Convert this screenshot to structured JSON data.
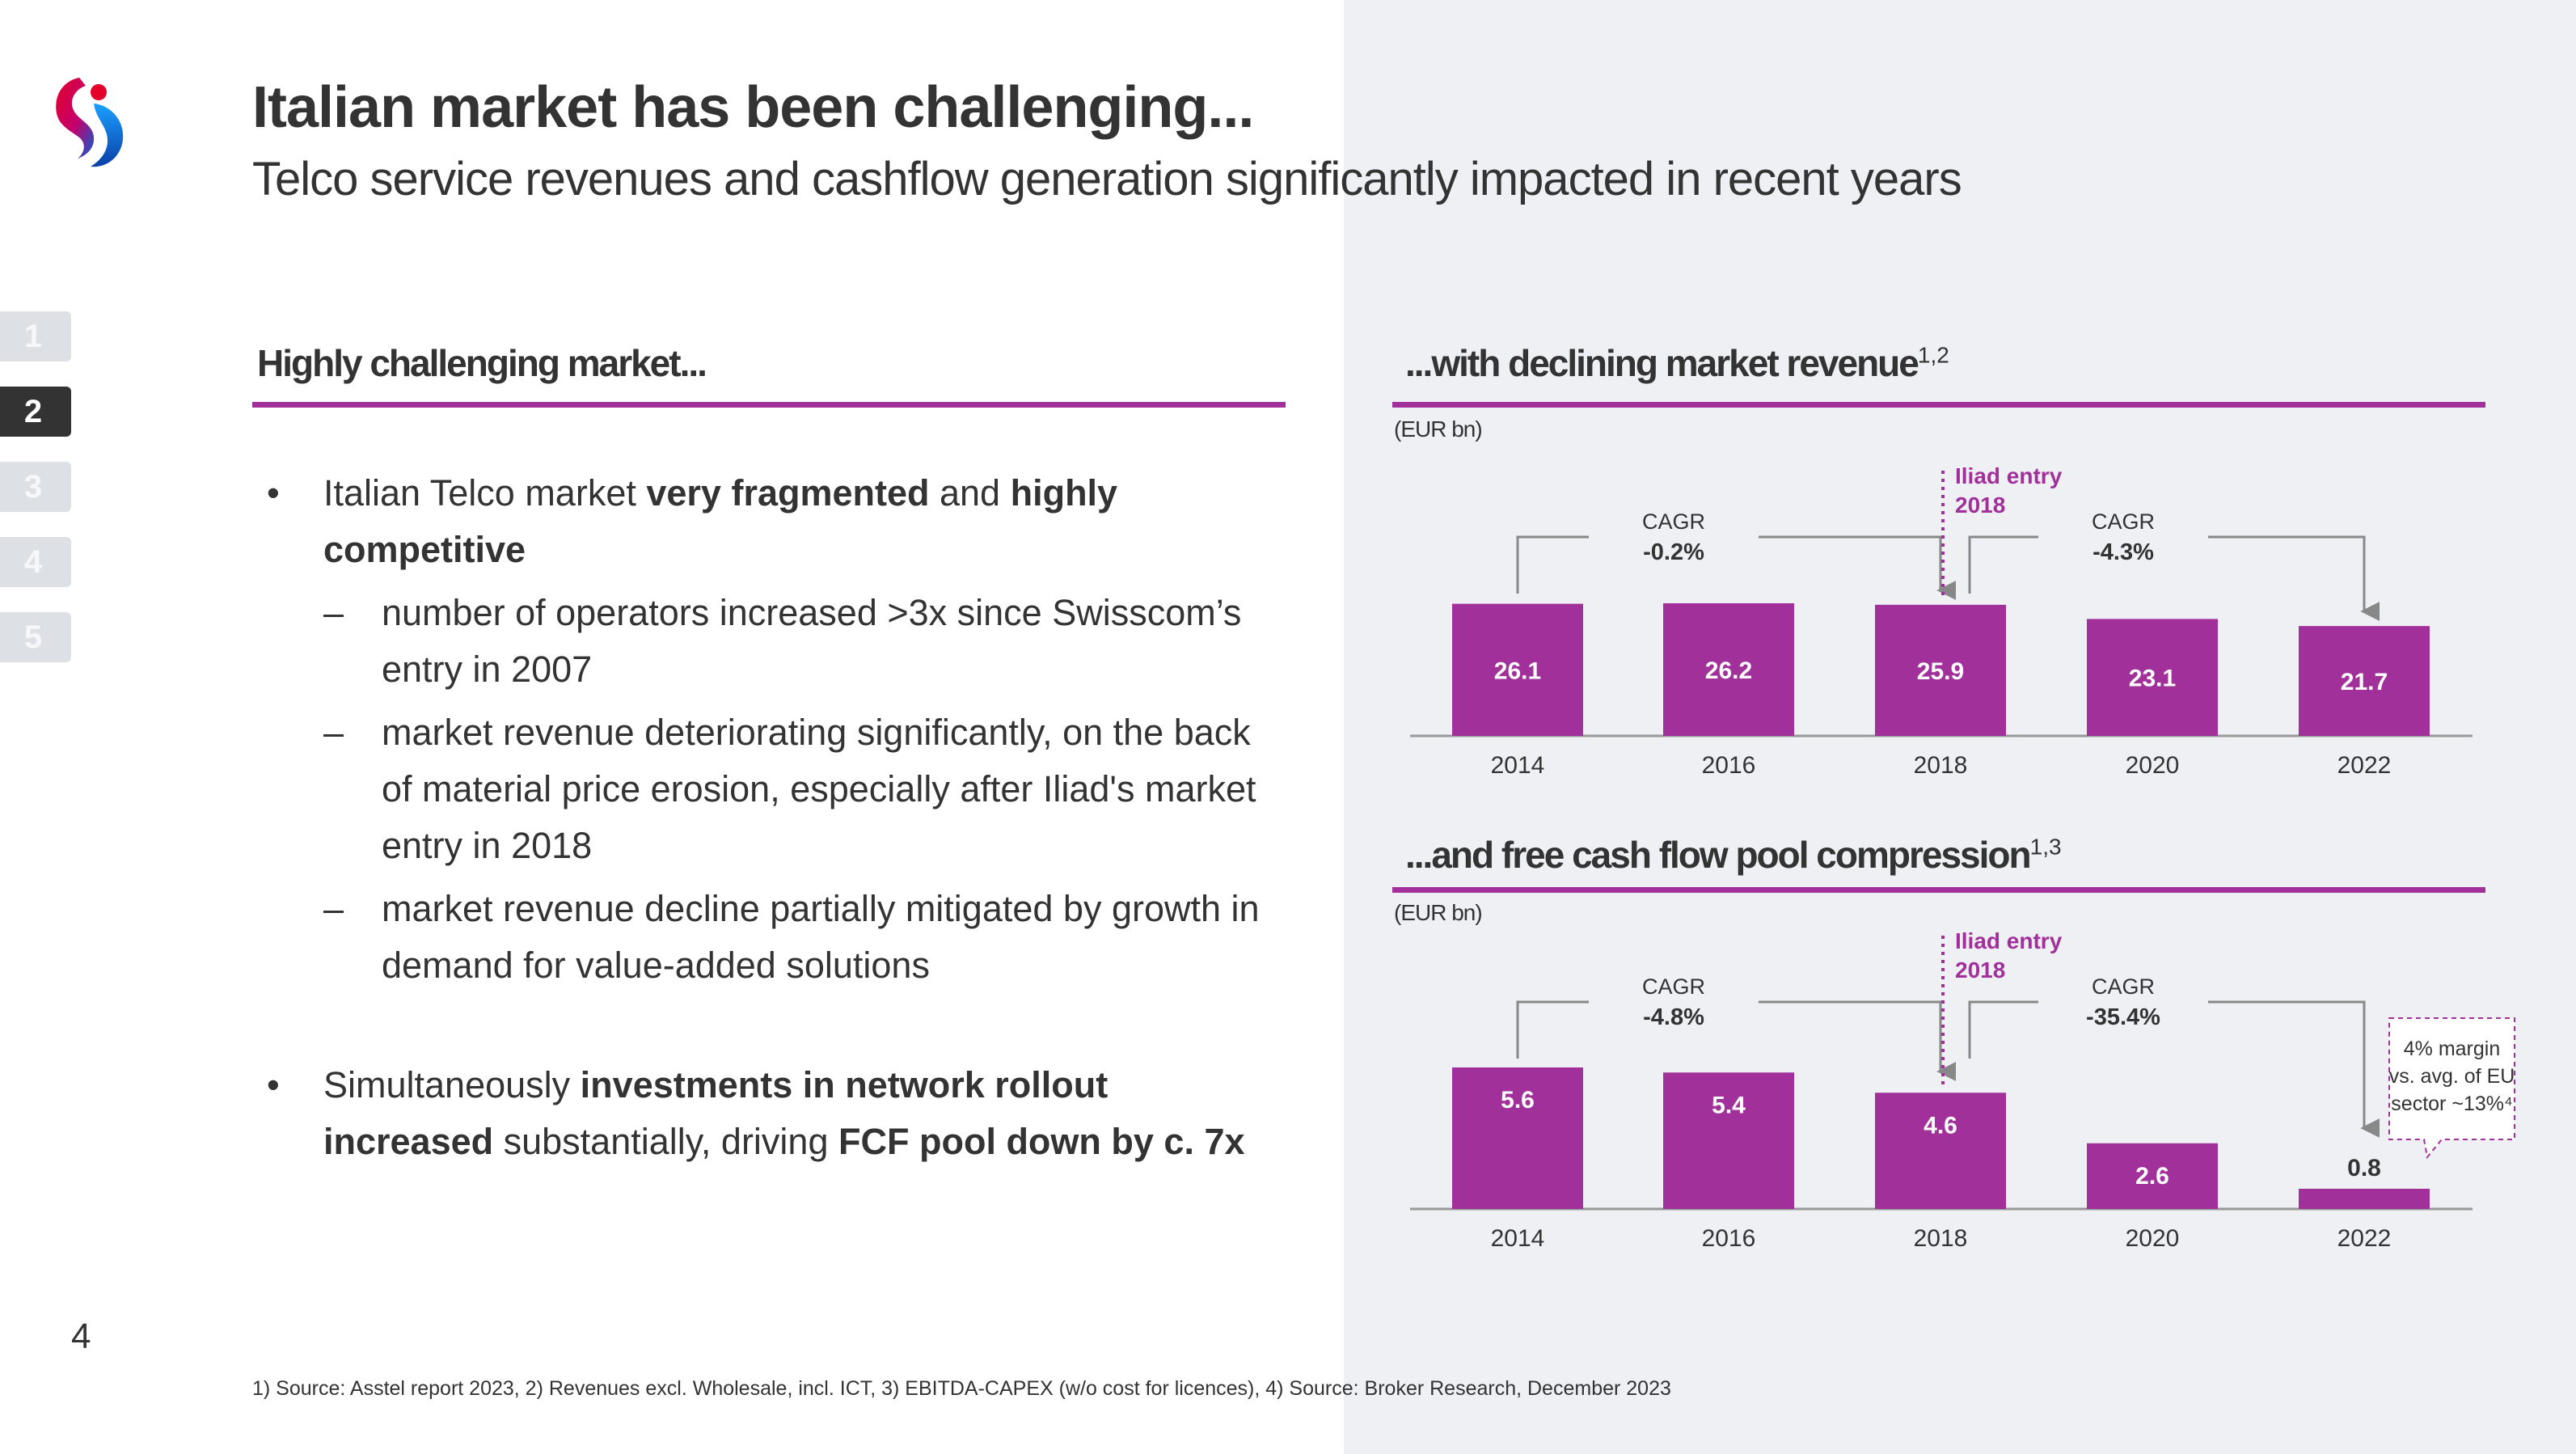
{
  "header": {
    "title": "Italian market has been challenging...",
    "subtitle": "Telco service revenues and cashflow generation significantly impacted in recent years"
  },
  "nav": {
    "items": [
      "1",
      "2",
      "3",
      "4",
      "5"
    ],
    "active": "2"
  },
  "page_number": "4",
  "left": {
    "heading": "Highly challenging market...",
    "bullets": [
      {
        "parts": [
          {
            "text": "Italian Telco market ",
            "bold": false
          },
          {
            "text": "very fragmented",
            "bold": true
          },
          {
            "text": " and ",
            "bold": false
          },
          {
            "text": "highly competitive",
            "bold": true
          }
        ],
        "subs": [
          "number of operators increased >3x since Swisscom’s entry in 2007",
          "market revenue deteriorating significantly, on the back of material price erosion, especially after Iliad's market entry in 2018",
          "market revenue decline partially mitigated by growth in demand for value-added solutions"
        ]
      },
      {
        "parts": [
          {
            "text": "Simultaneously ",
            "bold": false
          },
          {
            "text": "investments in network rollout increased",
            "bold": true
          },
          {
            "text": " substantially, driving ",
            "bold": false
          },
          {
            "text": "FCF pool down by c. 7x",
            "bold": true
          }
        ],
        "subs": []
      }
    ]
  },
  "footnote": "1) Source: Asstel report 2023, 2) Revenues excl. Wholesale, incl. ICT, 3) EBITDA-CAPEX (w/o cost for licences), 4) Source: Broker Research, December 2023",
  "colors": {
    "accent": "#a1309b",
    "text": "#333333",
    "panel": "#eef0f3"
  },
  "chart_data": [
    {
      "type": "bar",
      "title": "...with declining market revenue",
      "title_sup": "1,2",
      "unit_label": "(EUR bn)",
      "categories": [
        "2014",
        "2016",
        "2018",
        "2020",
        "2022"
      ],
      "values": [
        26.1,
        26.2,
        25.9,
        23.1,
        21.7
      ],
      "value_labels": [
        "26.1",
        "26.2",
        "25.9",
        "23.1",
        "21.7"
      ],
      "ylim": [
        0,
        26.2
      ],
      "annotations": {
        "cagr_label": "CAGR",
        "cagr": [
          {
            "from": "2014",
            "to": "2018",
            "value": "-0.2%"
          },
          {
            "from": "2018",
            "to": "2022",
            "value": "-4.3%"
          }
        ],
        "marker": {
          "at": "2018",
          "line1": "Iliad entry",
          "line2": "2018"
        }
      }
    },
    {
      "type": "bar",
      "title": "...and free cash flow pool compression",
      "title_sup": "1,3",
      "unit_label": "(EUR bn)",
      "categories": [
        "2014",
        "2016",
        "2018",
        "2020",
        "2022"
      ],
      "values": [
        5.6,
        5.4,
        4.6,
        2.6,
        0.8
      ],
      "value_labels": [
        "5.6",
        "5.4",
        "4.6",
        "2.6",
        "0.8"
      ],
      "ylim": [
        0,
        5.6
      ],
      "annotations": {
        "cagr_label": "CAGR",
        "cagr": [
          {
            "from": "2014",
            "to": "2018",
            "value": "-4.8%"
          },
          {
            "from": "2018",
            "to": "2022",
            "value": "-35.4%"
          }
        ],
        "marker": {
          "at": "2018",
          "line1": "Iliad entry",
          "line2": "2018"
        },
        "callout": [
          "4% margin",
          "vs. avg. of EU",
          "sector ~13%⁴"
        ]
      }
    }
  ]
}
